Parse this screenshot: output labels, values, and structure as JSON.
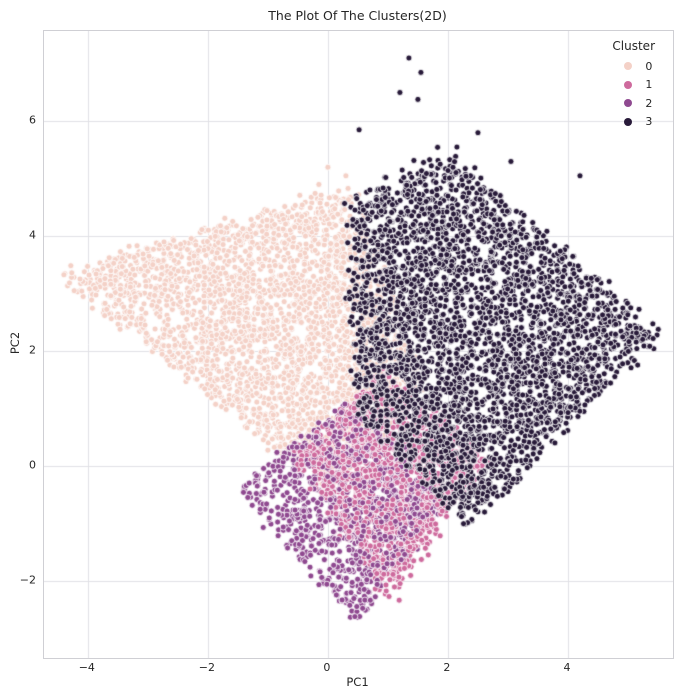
{
  "chart_data": {
    "type": "scatter",
    "title": "The Plot Of The Clusters(2D)",
    "xlabel": "PC1",
    "ylabel": "PC2",
    "xlim": [
      -4.73,
      5.75
    ],
    "ylim": [
      -3.34,
      7.57
    ],
    "xticks": [
      -4,
      -2,
      0,
      2,
      4
    ],
    "yticks": [
      -2,
      0,
      2,
      4,
      6
    ],
    "grid": true,
    "legend": {
      "title": "Cluster",
      "position": "upper right"
    },
    "marker": {
      "radius": 3,
      "edge_color": "#ffffff",
      "edge_width": 0.8
    },
    "clusters": [
      {
        "label": "0",
        "color": "#f4d1c7",
        "count": 3000,
        "draw_group": 0,
        "region_polygon": [
          [
            -4.55,
            3.35
          ],
          [
            0.35,
            4.82
          ],
          [
            1.6,
            1.3
          ],
          [
            0.15,
            -0.5
          ]
        ],
        "outliers": [
          [
            0.0,
            5.2
          ],
          [
            0.3,
            5.05
          ],
          [
            -0.15,
            4.9
          ]
        ]
      },
      {
        "label": "1",
        "color": "#ce6a9d",
        "count": 1300,
        "draw_group": 1,
        "region_polygon": [
          [
            -0.55,
            0.25
          ],
          [
            1.05,
            1.7
          ],
          [
            2.65,
            0.1
          ],
          [
            1.0,
            -2.3
          ]
        ],
        "outliers": []
      },
      {
        "label": "2",
        "color": "#8f4990",
        "count": 1000,
        "draw_group": 1,
        "region_polygon": [
          [
            -1.5,
            -0.4
          ],
          [
            0.35,
            1.15
          ],
          [
            1.95,
            -0.55
          ],
          [
            0.5,
            -2.7
          ]
        ],
        "outliers": [
          [
            0.45,
            -2.62
          ]
        ]
      },
      {
        "label": "3",
        "color": "#281a39",
        "count": 3400,
        "draw_group": 2,
        "region_polygon": [
          [
            0.35,
            4.6
          ],
          [
            2.0,
            5.45
          ],
          [
            5.5,
            2.3
          ],
          [
            2.35,
            -1.05
          ],
          [
            0.5,
            0.9
          ]
        ],
        "outliers": [
          [
            1.35,
            7.1
          ],
          [
            1.55,
            6.85
          ],
          [
            1.2,
            6.5
          ],
          [
            1.5,
            6.38
          ],
          [
            0.52,
            5.85
          ],
          [
            2.5,
            5.8
          ],
          [
            2.15,
            5.55
          ],
          [
            3.05,
            5.3
          ],
          [
            4.2,
            5.05
          ]
        ]
      }
    ]
  },
  "style": {
    "background": "#ffffff",
    "grid_color": "#e1e1e6",
    "spine_color": "#cfcfd4",
    "text_color": "#262626"
  }
}
